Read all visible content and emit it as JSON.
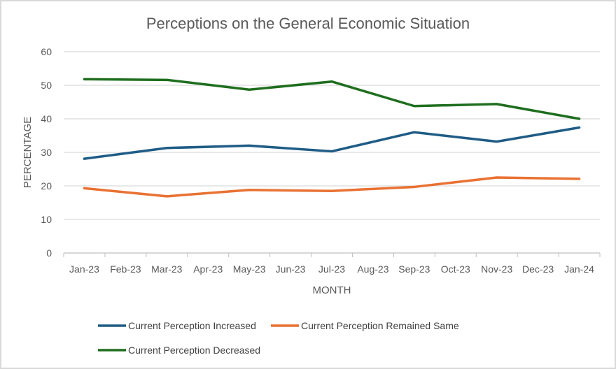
{
  "chart_data": {
    "type": "line",
    "title": "Perceptions on the General Economic Situation",
    "xlabel": "MONTH",
    "ylabel": "PERCENTAGE",
    "ylim": [
      0,
      60
    ],
    "yticks": [
      0,
      10,
      20,
      30,
      40,
      50,
      60
    ],
    "grid": true,
    "legend_position": "bottom",
    "categories": [
      "Jan-23",
      "Feb-23",
      "Mar-23",
      "Apr-23",
      "May-23",
      "Jun-23",
      "Jul-23",
      "Aug-23",
      "Sep-23",
      "Oct-23",
      "Nov-23",
      "Dec-23",
      "Jan-24"
    ],
    "series": [
      {
        "name": "Current Perception Increased",
        "color": "#1f5c86",
        "points": [
          {
            "x": "Jan-23",
            "y": 28.1
          },
          {
            "x": "Mar-23",
            "y": 31.3
          },
          {
            "x": "May-23",
            "y": 32.0
          },
          {
            "x": "Jul-23",
            "y": 30.3
          },
          {
            "x": "Sep-23",
            "y": 36.0
          },
          {
            "x": "Nov-23",
            "y": 33.2
          },
          {
            "x": "Jan-24",
            "y": 37.4
          }
        ]
      },
      {
        "name": "Current Perception Remained Same",
        "color": "#e97132",
        "points": [
          {
            "x": "Jan-23",
            "y": 19.3
          },
          {
            "x": "Mar-23",
            "y": 16.9
          },
          {
            "x": "May-23",
            "y": 18.8
          },
          {
            "x": "Jul-23",
            "y": 18.5
          },
          {
            "x": "Sep-23",
            "y": 19.7
          },
          {
            "x": "Nov-23",
            "y": 22.5
          },
          {
            "x": "Jan-24",
            "y": 22.1
          }
        ]
      },
      {
        "name": "Current Perception Decreased",
        "color": "#1e6e1e",
        "points": [
          {
            "x": "Jan-23",
            "y": 51.8
          },
          {
            "x": "Mar-23",
            "y": 51.6
          },
          {
            "x": "May-23",
            "y": 48.7
          },
          {
            "x": "Jul-23",
            "y": 51.1
          },
          {
            "x": "Sep-23",
            "y": 43.8
          },
          {
            "x": "Nov-23",
            "y": 44.4
          },
          {
            "x": "Jan-24",
            "y": 40.0
          }
        ]
      }
    ]
  },
  "colors": {
    "gridline": "#d9d9d9",
    "axis": "#bfbfbf",
    "text": "#595959"
  }
}
